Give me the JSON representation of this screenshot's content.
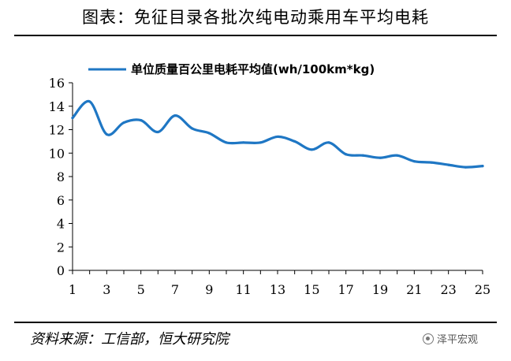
{
  "header": {
    "title": "图表：免征目录各批次纯电动乘用车平均电耗"
  },
  "footer": {
    "source": "资料来源：工信部，恒大研究院",
    "brand": "泽平宏观",
    "brand_icon": "wechat-icon"
  },
  "chart_data": {
    "type": "line",
    "title": "图表：免征目录各批次纯电动乘用车平均电耗",
    "xlabel": "",
    "ylabel": "",
    "x": [
      1,
      2,
      3,
      4,
      5,
      6,
      7,
      8,
      9,
      10,
      11,
      12,
      13,
      14,
      15,
      16,
      17,
      18,
      19,
      20,
      21,
      22,
      23,
      24,
      25
    ],
    "x_tick_labels": [
      "1",
      "3",
      "5",
      "7",
      "9",
      "11",
      "13",
      "15",
      "17",
      "19",
      "21",
      "23",
      "25"
    ],
    "y_tick_labels": [
      "0",
      "2",
      "4",
      "6",
      "8",
      "10",
      "12",
      "14",
      "16"
    ],
    "ylim": [
      0,
      16
    ],
    "xlim": [
      1,
      25
    ],
    "grid": false,
    "legend": "top",
    "series": [
      {
        "name": "单位质量百公里电耗平均值(wh/100km*kg)",
        "color": "#1f77c4",
        "values": [
          13.0,
          14.4,
          11.6,
          12.6,
          12.8,
          11.8,
          13.2,
          12.1,
          11.7,
          10.9,
          10.9,
          10.9,
          11.4,
          11.0,
          10.3,
          10.9,
          9.9,
          9.8,
          9.6,
          9.8,
          9.3,
          9.2,
          9.0,
          8.8,
          8.9
        ]
      }
    ]
  }
}
